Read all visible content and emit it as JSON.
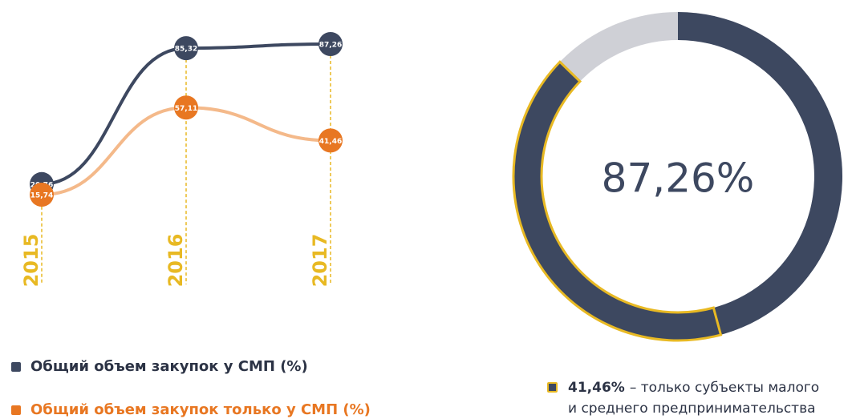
{
  "chart_data": [
    {
      "type": "line",
      "categories": [
        "2015",
        "2016",
        "2017"
      ],
      "series": [
        {
          "name": "Общий объем закупок у СМП (%)",
          "color": "#3d4860",
          "values": [
            20.76,
            85.32,
            87.26
          ],
          "value_labels": [
            "20,76",
            "85,32",
            "87,26"
          ]
        },
        {
          "name": "Общий объем закупок только у СМП (%)",
          "color": "#e87722",
          "values": [
            15.74,
            57.11,
            41.46
          ],
          "value_labels": [
            "15,74",
            "57,11",
            "41,46"
          ]
        }
      ],
      "category_color": "#e8b923"
    },
    {
      "type": "donut",
      "values": [
        87.26,
        41.46
      ],
      "value_labels": [
        "87,26%",
        "41,46%"
      ],
      "colors": [
        "#3d4860",
        "#e8b923"
      ],
      "background_color": "#cfd0d6",
      "legend_text": [
        "– только субъекты малого",
        "и среднего предпринимательства"
      ]
    }
  ]
}
